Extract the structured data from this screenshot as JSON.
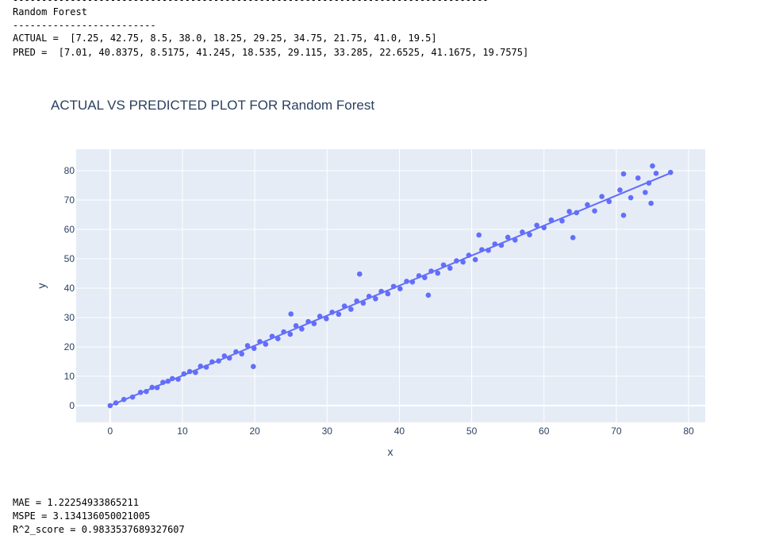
{
  "output": {
    "header_rule": "-----------------------------------------------------------------------------------",
    "model": "Random Forest",
    "rule": "-------------------------",
    "actual": "ACTUAL =  [7.25, 42.75, 8.5, 38.0, 18.25, 29.25, 34.75, 21.75, 41.0, 19.5]",
    "pred": "PRED =  [7.01, 40.8375, 8.5175, 41.245, 18.535, 29.115, 33.285, 22.6525, 41.1675, 19.7575]",
    "metrics": [
      "MAE = 1.22254933865211",
      "MSPE = 3.134136050021005",
      "R^2_score = 0.9833537689327607"
    ]
  },
  "chart_data": {
    "type": "scatter",
    "title": "ACTUAL VS PREDICTED PLOT FOR Random Forest",
    "x_label": "x",
    "y_label": "y",
    "xlim": [
      -4.7,
      82.3
    ],
    "ylim": [
      -5.7,
      87.3
    ],
    "xticks": [
      0,
      10,
      20,
      30,
      40,
      50,
      60,
      70,
      80
    ],
    "yticks": [
      0,
      10,
      20,
      30,
      40,
      50,
      60,
      70,
      80
    ],
    "grid": true,
    "background": "#e5ecf6",
    "series": [
      {
        "mode": "markers",
        "color": "#636efa",
        "x": [
          0,
          0.8,
          1.9,
          3.1,
          4.2,
          5,
          5.8,
          6.5,
          7.3,
          8,
          8.6,
          9.4,
          10.2,
          11,
          11.8,
          12.5,
          13.3,
          14.1,
          15,
          15.8,
          16.5,
          17.4,
          18.2,
          19,
          19.9,
          20.7,
          21.5,
          22.4,
          23.2,
          24,
          24.9,
          25.7,
          26.5,
          27.4,
          28.2,
          29,
          29.9,
          30.7,
          31.6,
          32.4,
          33.3,
          34.1,
          35,
          35.8,
          36.7,
          37.5,
          38.4,
          39.2,
          40.1,
          41,
          41.8,
          42.7,
          43.5,
          44.4,
          45.3,
          46.1,
          47,
          47.9,
          48.8,
          49.6,
          50.5,
          51.4,
          52.3,
          53.2,
          54.1,
          55,
          56,
          57,
          58,
          59,
          60,
          61,
          62.5,
          63.5,
          64.5,
          66,
          67,
          68,
          69,
          70.5,
          71,
          72,
          73,
          74,
          74.5,
          75,
          75.5,
          77.5,
          19.8,
          34.5,
          51,
          64,
          71,
          74.8,
          25,
          44
        ],
        "values": [
          0,
          0.9,
          2.1,
          2.9,
          4.5,
          4.8,
          6.2,
          6.1,
          7.9,
          8.3,
          9.2,
          9.0,
          10.8,
          11.6,
          11.3,
          13.4,
          13.1,
          14.9,
          15.2,
          16.9,
          16.2,
          18.3,
          17.6,
          20.4,
          19.5,
          21.8,
          20.9,
          23.6,
          22.8,
          25.1,
          24.3,
          27.2,
          26.1,
          28.6,
          27.9,
          30.4,
          29.6,
          31.8,
          31.1,
          33.9,
          32.8,
          35.6,
          34.9,
          37.2,
          36.4,
          38.9,
          38.1,
          40.6,
          39.8,
          42.3,
          42.1,
          44.2,
          43.6,
          45.8,
          45.1,
          47.9,
          46.8,
          49.3,
          48.9,
          51.2,
          49.7,
          53.1,
          52.9,
          55.0,
          54.6,
          57.3,
          56.4,
          59.1,
          58.2,
          61.4,
          60.6,
          63.2,
          62.9,
          66.1,
          65.7,
          68.4,
          66.3,
          71.2,
          69.5,
          73.4,
          78.9,
          70.8,
          77.5,
          72.6,
          75.8,
          81.6,
          79.1,
          79.4,
          13.3,
          44.8,
          58.1,
          57.2,
          64.8,
          68.9,
          31.2,
          37.6
        ]
      },
      {
        "mode": "lines",
        "color": "#636efa",
        "x": [
          0,
          77.5
        ],
        "values": [
          0,
          79.2
        ]
      }
    ]
  }
}
